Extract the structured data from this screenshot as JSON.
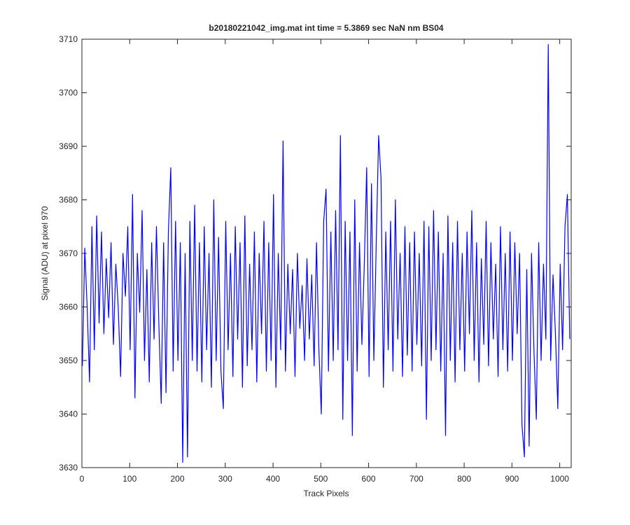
{
  "chart_data": {
    "type": "line",
    "title": "b20180221042_img.mat int time = 5.3869 sec  NaN nm BS04",
    "xlabel": "Track Pixels",
    "ylabel": "Signal (ADU) at pixel 970",
    "xlim": [
      0,
      1024
    ],
    "ylim": [
      3630,
      3710
    ],
    "xticks": [
      0,
      100,
      200,
      300,
      400,
      500,
      600,
      700,
      800,
      900,
      1000
    ],
    "yticks": [
      3630,
      3640,
      3650,
      3660,
      3670,
      3680,
      3690,
      3700,
      3710
    ],
    "grid": false,
    "x": [
      1,
      6,
      11,
      16,
      21,
      26,
      31,
      36,
      41,
      46,
      51,
      56,
      61,
      66,
      71,
      76,
      81,
      86,
      91,
      96,
      101,
      106,
      111,
      116,
      121,
      126,
      131,
      136,
      141,
      146,
      151,
      156,
      161,
      166,
      171,
      176,
      181,
      186,
      191,
      196,
      201,
      206,
      211,
      216,
      221,
      226,
      231,
      236,
      241,
      246,
      251,
      256,
      261,
      266,
      271,
      276,
      281,
      286,
      291,
      296,
      301,
      306,
      311,
      316,
      321,
      326,
      331,
      336,
      341,
      346,
      351,
      356,
      361,
      366,
      371,
      376,
      381,
      386,
      391,
      396,
      401,
      406,
      411,
      416,
      421,
      426,
      431,
      436,
      441,
      446,
      451,
      456,
      461,
      466,
      471,
      476,
      481,
      486,
      491,
      496,
      501,
      506,
      511,
      516,
      521,
      526,
      531,
      536,
      541,
      546,
      551,
      556,
      561,
      566,
      571,
      576,
      581,
      586,
      591,
      596,
      601,
      606,
      611,
      616,
      621,
      626,
      631,
      636,
      641,
      646,
      651,
      656,
      661,
      666,
      671,
      676,
      681,
      686,
      691,
      696,
      701,
      706,
      711,
      716,
      721,
      726,
      731,
      736,
      741,
      746,
      751,
      756,
      761,
      766,
      771,
      776,
      781,
      786,
      791,
      796,
      801,
      806,
      811,
      816,
      821,
      826,
      831,
      836,
      841,
      846,
      851,
      856,
      861,
      866,
      871,
      876,
      881,
      886,
      891,
      896,
      901,
      906,
      911,
      916,
      921,
      926,
      931,
      936,
      941,
      946,
      951,
      956,
      961,
      966,
      971,
      976,
      981,
      986,
      991,
      996,
      1001,
      1006,
      1011,
      1016,
      1021
    ],
    "series": [
      {
        "color": "#0000ff",
        "values": [
          3649,
          3671,
          3660,
          3646,
          3675,
          3652,
          3677,
          3657,
          3674,
          3655,
          3669,
          3658,
          3672,
          3653,
          3668,
          3660,
          3647,
          3670,
          3662,
          3675,
          3652,
          3681,
          3643,
          3670,
          3659,
          3678,
          3650,
          3667,
          3646,
          3672,
          3654,
          3675,
          3657,
          3642,
          3672,
          3644,
          3674,
          3686,
          3648,
          3676,
          3650,
          3672,
          3631,
          3670,
          3632,
          3676,
          3650,
          3679,
          3648,
          3672,
          3646,
          3675,
          3652,
          3670,
          3645,
          3680,
          3650,
          3673,
          3648,
          3641,
          3676,
          3652,
          3670,
          3647,
          3675,
          3654,
          3672,
          3645,
          3677,
          3649,
          3668,
          3652,
          3674,
          3646,
          3670,
          3655,
          3676,
          3648,
          3672,
          3650,
          3681,
          3645,
          3670,
          3652,
          3691,
          3648,
          3668,
          3655,
          3667,
          3647,
          3670,
          3656,
          3664,
          3650,
          3669,
          3654,
          3666,
          3649,
          3672,
          3652,
          3640,
          3676,
          3682,
          3648,
          3674,
          3650,
          3678,
          3652,
          3692,
          3639,
          3676,
          3650,
          3674,
          3636,
          3680,
          3648,
          3672,
          3653,
          3668,
          3686,
          3647,
          3683,
          3650,
          3672,
          3692,
          3684,
          3645,
          3674,
          3652,
          3676,
          3648,
          3680,
          3654,
          3670,
          3647,
          3675,
          3651,
          3672,
          3648,
          3674,
          3653,
          3670,
          3649,
          3676,
          3639,
          3675,
          3650,
          3678,
          3652,
          3674,
          3648,
          3670,
          3636,
          3677,
          3650,
          3672,
          3646,
          3676,
          3652,
          3670,
          3648,
          3674,
          3655,
          3678,
          3650,
          3672,
          3646,
          3669,
          3653,
          3676,
          3649,
          3672,
          3654,
          3668,
          3647,
          3675,
          3652,
          3670,
          3648,
          3674,
          3650,
          3672,
          3655,
          3670,
          3638,
          3632,
          3667,
          3634,
          3670,
          3652,
          3639,
          3672,
          3650,
          3668,
          3654,
          3709,
          3650,
          3666,
          3655,
          3641,
          3668,
          3652,
          3675,
          3681,
          3654
        ]
      }
    ]
  }
}
